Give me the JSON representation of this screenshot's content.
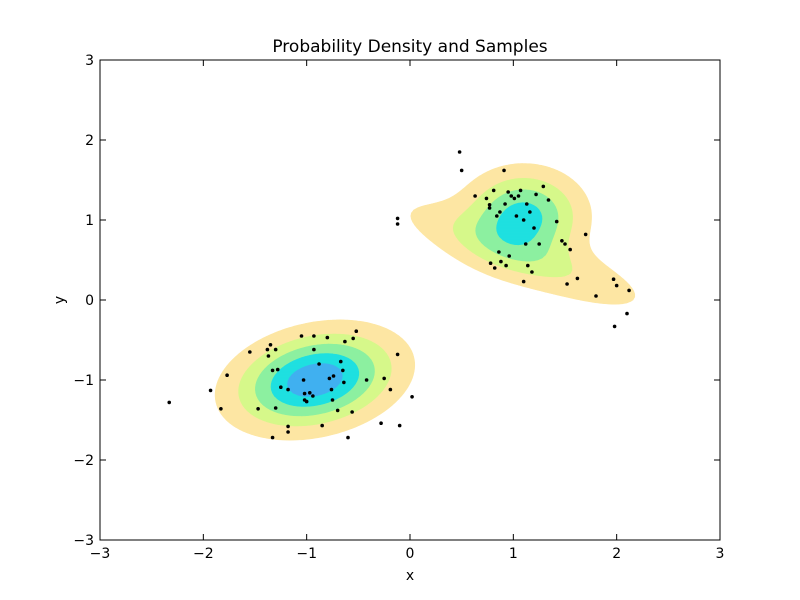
{
  "chart_data": {
    "type": "contour-scatter",
    "title": "Probability Density and Samples",
    "xlabel": "x",
    "ylabel": "y",
    "xlim": [
      -3,
      3
    ],
    "ylim": [
      -3,
      3
    ],
    "xticks": [
      -3,
      -2,
      -1,
      0,
      1,
      2,
      3
    ],
    "yticks": [
      -3,
      -2,
      -1,
      0,
      1,
      2,
      3
    ],
    "xtick_labels": [
      "−3",
      "−2",
      "−1",
      "0",
      "1",
      "2",
      "3"
    ],
    "ytick_labels": [
      "−3",
      "−2",
      "−1",
      "0",
      "1",
      "2",
      "3"
    ],
    "grid": false,
    "legend": "none",
    "colors": {
      "levels": [
        "#fde6a3",
        "#d6f88a",
        "#8cf0a0",
        "#1fe0e0",
        "#40b0f0",
        "#2f64e8",
        "#1c34d8"
      ],
      "points": "#000000"
    },
    "density_components": [
      {
        "mean": [
          -0.92,
          -1.0
        ],
        "sigma_x": 0.45,
        "sigma_y": 0.35,
        "rho": 0.25,
        "weight": 0.5
      },
      {
        "mean": [
          1.1,
          1.05
        ],
        "sigma_x": 0.33,
        "sigma_y": 0.33,
        "rho": 0.0,
        "weight": 0.36
      },
      {
        "mean": [
          1.1,
          0.55
        ],
        "sigma_x": 0.75,
        "sigma_y": 0.42,
        "rho": -0.82,
        "weight": 0.14
      }
    ],
    "contour_levels": [
      0.05,
      0.13,
      0.22,
      0.32,
      0.42,
      0.55,
      0.68
    ],
    "samples": [
      [
        -2.33,
        -1.28
      ],
      [
        -1.93,
        -1.13
      ],
      [
        -1.83,
        -1.36
      ],
      [
        -1.77,
        -0.94
      ],
      [
        -1.55,
        -0.65
      ],
      [
        -1.47,
        -1.36
      ],
      [
        -1.38,
        -0.62
      ],
      [
        -1.37,
        -0.7
      ],
      [
        -1.35,
        -0.56
      ],
      [
        -1.33,
        -0.88
      ],
      [
        -1.33,
        -1.72
      ],
      [
        -1.3,
        -1.35
      ],
      [
        -1.3,
        -0.62
      ],
      [
        -1.28,
        -0.87
      ],
      [
        -1.25,
        -1.09
      ],
      [
        -1.18,
        -1.12
      ],
      [
        -1.18,
        -1.65
      ],
      [
        -1.18,
        -1.58
      ],
      [
        -1.05,
        -0.45
      ],
      [
        -1.03,
        -1.0
      ],
      [
        -1.02,
        -1.25
      ],
      [
        -1.02,
        -1.17
      ],
      [
        -1.0,
        -1.27
      ],
      [
        -0.97,
        -1.16
      ],
      [
        -0.94,
        -1.2
      ],
      [
        -0.93,
        -0.62
      ],
      [
        -0.93,
        -0.45
      ],
      [
        -0.88,
        -0.8
      ],
      [
        -0.85,
        -1.57
      ],
      [
        -0.8,
        -0.47
      ],
      [
        -0.78,
        -0.98
      ],
      [
        -0.76,
        -1.12
      ],
      [
        -0.75,
        -1.25
      ],
      [
        -0.74,
        -0.95
      ],
      [
        -0.7,
        -1.38
      ],
      [
        -0.67,
        -0.77
      ],
      [
        -0.65,
        -0.88
      ],
      [
        -0.64,
        -1.03
      ],
      [
        -0.63,
        -0.52
      ],
      [
        -0.6,
        -1.72
      ],
      [
        -0.56,
        -1.4
      ],
      [
        -0.55,
        -0.48
      ],
      [
        -0.52,
        -0.39
      ],
      [
        -0.42,
        -1.0
      ],
      [
        -0.28,
        -1.54
      ],
      [
        -0.25,
        -0.98
      ],
      [
        -0.19,
        -1.12
      ],
      [
        -0.12,
        -0.68
      ],
      [
        -0.1,
        -1.57
      ],
      [
        0.02,
        -1.21
      ],
      [
        -0.12,
        1.02
      ],
      [
        -0.12,
        0.95
      ],
      [
        0.48,
        1.85
      ],
      [
        0.5,
        1.62
      ],
      [
        0.63,
        1.3
      ],
      [
        0.74,
        1.27
      ],
      [
        0.77,
        1.19
      ],
      [
        0.77,
        1.15
      ],
      [
        0.78,
        0.46
      ],
      [
        0.81,
        1.37
      ],
      [
        0.82,
        0.4
      ],
      [
        0.84,
        1.05
      ],
      [
        0.86,
        0.6
      ],
      [
        0.87,
        1.1
      ],
      [
        0.88,
        0.48
      ],
      [
        0.91,
        1.62
      ],
      [
        0.92,
        1.2
      ],
      [
        0.93,
        0.43
      ],
      [
        0.95,
        1.35
      ],
      [
        0.96,
        0.55
      ],
      [
        0.98,
        1.3
      ],
      [
        1.01,
        1.27
      ],
      [
        1.03,
        1.05
      ],
      [
        1.05,
        1.3
      ],
      [
        1.07,
        1.37
      ],
      [
        1.1,
        1.0
      ],
      [
        1.1,
        0.23
      ],
      [
        1.12,
        0.7
      ],
      [
        1.13,
        1.2
      ],
      [
        1.14,
        0.43
      ],
      [
        1.16,
        1.1
      ],
      [
        1.18,
        0.35
      ],
      [
        1.2,
        0.9
      ],
      [
        1.22,
        1.32
      ],
      [
        1.25,
        0.7
      ],
      [
        1.29,
        1.42
      ],
      [
        1.34,
        1.25
      ],
      [
        1.42,
        0.98
      ],
      [
        1.47,
        0.74
      ],
      [
        1.5,
        0.7
      ],
      [
        1.52,
        0.2
      ],
      [
        1.55,
        0.63
      ],
      [
        1.62,
        0.27
      ],
      [
        1.7,
        0.82
      ],
      [
        1.8,
        0.05
      ],
      [
        1.97,
        0.26
      ],
      [
        1.98,
        -0.33
      ],
      [
        2.0,
        0.18
      ],
      [
        2.1,
        -0.17
      ],
      [
        2.12,
        0.12
      ]
    ]
  }
}
